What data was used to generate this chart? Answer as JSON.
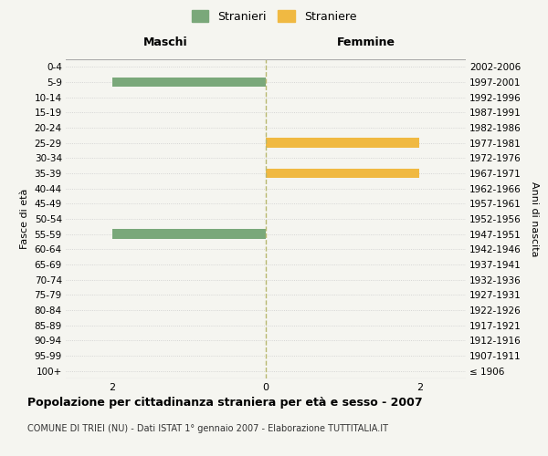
{
  "age_groups": [
    "100+",
    "95-99",
    "90-94",
    "85-89",
    "80-84",
    "75-79",
    "70-74",
    "65-69",
    "60-64",
    "55-59",
    "50-54",
    "45-49",
    "40-44",
    "35-39",
    "30-34",
    "25-29",
    "20-24",
    "15-19",
    "10-14",
    "5-9",
    "0-4"
  ],
  "birth_years": [
    "≤ 1906",
    "1907-1911",
    "1912-1916",
    "1917-1921",
    "1922-1926",
    "1927-1931",
    "1932-1936",
    "1937-1941",
    "1942-1946",
    "1947-1951",
    "1952-1956",
    "1957-1961",
    "1962-1966",
    "1967-1971",
    "1972-1976",
    "1977-1981",
    "1982-1986",
    "1987-1991",
    "1992-1996",
    "1997-2001",
    "2002-2006"
  ],
  "males": [
    0,
    0,
    0,
    0,
    0,
    0,
    0,
    0,
    0,
    2,
    0,
    0,
    0,
    0,
    0,
    0,
    0,
    0,
    0,
    2,
    0
  ],
  "females": [
    0,
    0,
    0,
    0,
    0,
    0,
    0,
    0,
    0,
    0,
    0,
    0,
    0,
    2,
    0,
    2,
    0,
    0,
    0,
    0,
    0
  ],
  "male_color": "#7aa87a",
  "female_color": "#f0b942",
  "xlim": 2.6,
  "title": "Popolazione per cittadinanza straniera per età e sesso - 2007",
  "subtitle": "COMUNE DI TRIEI (NU) - Dati ISTAT 1° gennaio 2007 - Elaborazione TUTTITALIA.IT",
  "legend_male": "Stranieri",
  "legend_female": "Straniere",
  "left_header": "Maschi",
  "right_header": "Femmine",
  "ylabel_left": "Fasce di età",
  "ylabel_right": "Anni di nascita",
  "bg_color": "#f5f5f0",
  "grid_color": "#cccccc",
  "center_line_color": "#b8b870"
}
